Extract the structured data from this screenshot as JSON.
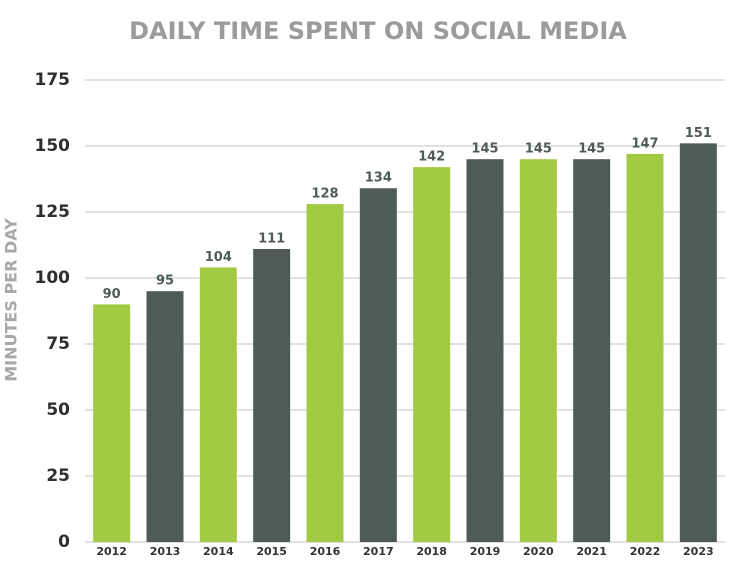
{
  "chart_data": {
    "type": "bar",
    "title": "DAILY TIME SPENT ON SOCIAL MEDIA",
    "y_label": "MINUTES PER DAY",
    "categories": [
      "2012",
      "2013",
      "2014",
      "2015",
      "2016",
      "2017",
      "2018",
      "2019",
      "2020",
      "2021",
      "2022",
      "2023"
    ],
    "values": [
      90,
      95,
      104,
      111,
      128,
      134,
      142,
      145,
      145,
      145,
      147,
      151
    ],
    "colors": [
      "#a2cb43",
      "#4f5b55",
      "#a2cb43",
      "#4f5b55",
      "#a2cb43",
      "#4f5b55",
      "#a2cb43",
      "#4f5b55",
      "#a2cb43",
      "#4f5b55",
      "#a2cb43",
      "#4f5b55"
    ],
    "ylim": [
      0,
      175
    ],
    "yticks": [
      0,
      25,
      50,
      75,
      100,
      125,
      150,
      175
    ],
    "grid": true
  }
}
